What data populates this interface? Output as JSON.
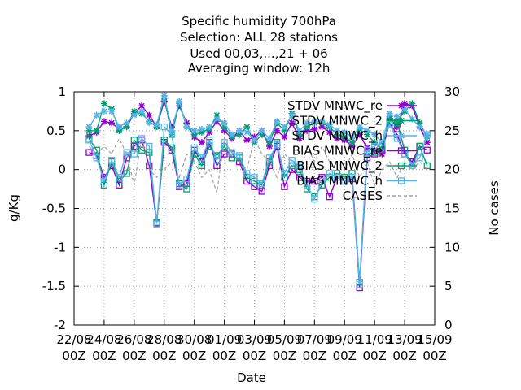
{
  "chart_data": {
    "type": "line",
    "title_lines": [
      "Specific humidity 700hPa",
      "Selection: ALL      28 stations",
      "Used  00,03,...,21  + 06",
      "Averaging window: 12h"
    ],
    "xlabel": "Date",
    "ylabel": "g/Kg",
    "y2label": "No cases",
    "ylim": [
      -2,
      1
    ],
    "y2lim": [
      0,
      30
    ],
    "yticks": [
      "1",
      "0.5",
      "0",
      "-0.5",
      "-1",
      "-1.5",
      "-2"
    ],
    "y2ticks": [
      "30",
      "25",
      "20",
      "15",
      "10",
      "5",
      "0"
    ],
    "xticks": [
      {
        "date": "22/08",
        "time": "00Z"
      },
      {
        "date": "24/08",
        "time": "00Z"
      },
      {
        "date": "26/08",
        "time": "00Z"
      },
      {
        "date": "28/08",
        "time": "00Z"
      },
      {
        "date": "30/08",
        "time": "00Z"
      },
      {
        "date": "01/09",
        "time": "00Z"
      },
      {
        "date": "03/09",
        "time": "00Z"
      },
      {
        "date": "05/09",
        "time": "00Z"
      },
      {
        "date": "07/09",
        "time": "00Z"
      },
      {
        "date": "09/09",
        "time": "00Z"
      },
      {
        "date": "11/09",
        "time": "00Z"
      },
      {
        "date": "13/09",
        "time": "00Z"
      },
      {
        "date": "15/09",
        "time": "00Z"
      }
    ],
    "x_day_offsets": [
      1,
      1.5,
      2,
      2.5,
      3,
      3.5,
      4,
      4.5,
      5,
      5.5,
      6,
      6.5,
      7,
      7.5,
      8,
      8.5,
      9,
      9.5,
      10,
      10.5,
      11,
      11.5,
      12,
      12.5,
      13,
      13.5,
      14,
      14.5,
      15,
      15.5,
      16,
      16.5,
      17,
      17.5,
      18,
      18.5,
      19,
      19.5,
      20,
      20.5,
      21,
      21.5,
      22,
      22.5,
      23,
      23.5
    ],
    "legend_position": "top-right",
    "colors": {
      "purple": "#9400d3",
      "green": "#009e73",
      "cyan": "#56b4e9",
      "cases": "#a0a0a0"
    },
    "series": [
      {
        "name": "STDV MNWC_re",
        "color": "#9400d3",
        "marker": "star",
        "values": [
          0.43,
          0.48,
          0.62,
          0.6,
          0.52,
          0.55,
          0.72,
          0.82,
          0.7,
          0.55,
          0.88,
          0.55,
          0.82,
          0.6,
          0.42,
          0.35,
          0.48,
          0.62,
          0.5,
          0.4,
          0.5,
          0.38,
          0.42,
          0.5,
          0.3,
          0.5,
          0.42,
          0.6,
          0.4,
          0.5,
          0.52,
          0.55,
          0.48,
          0.4,
          0.38,
          0.3,
          0.45,
          0.28,
          0.25,
          0.2,
          0.65,
          0.55,
          0.85,
          0.82,
          0.55,
          0.35
        ]
      },
      {
        "name": "STDV MNWC_2",
        "color": "#009e73",
        "marker": "star",
        "values": [
          0.5,
          0.5,
          0.85,
          0.78,
          0.5,
          0.55,
          0.75,
          0.72,
          0.62,
          0.55,
          0.92,
          0.45,
          0.85,
          0.55,
          0.45,
          0.48,
          0.52,
          0.7,
          0.55,
          0.42,
          0.45,
          0.55,
          0.35,
          0.45,
          0.35,
          0.6,
          0.5,
          0.72,
          0.45,
          0.55,
          0.6,
          0.6,
          0.55,
          0.45,
          0.42,
          0.35,
          0.52,
          0.45,
          0.35,
          0.25,
          0.68,
          0.62,
          0.75,
          0.85,
          0.6,
          0.42
        ]
      },
      {
        "name": "STDV MNWC_h",
        "color": "#56b4e9",
        "marker": "star",
        "values": [
          0.55,
          0.7,
          0.75,
          0.75,
          0.55,
          0.6,
          0.7,
          0.75,
          0.6,
          0.58,
          0.95,
          0.5,
          0.88,
          0.55,
          0.5,
          0.52,
          0.55,
          0.65,
          0.6,
          0.45,
          0.5,
          0.48,
          0.38,
          0.5,
          0.4,
          0.62,
          0.55,
          0.7,
          0.5,
          0.6,
          0.62,
          0.62,
          0.58,
          0.5,
          0.48,
          0.42,
          0.55,
          0.5,
          0.45,
          0.35,
          0.72,
          0.68,
          0.78,
          0.65,
          0.55,
          0.45
        ]
      },
      {
        "name": "BIAS MNWC_re",
        "color": "#9400d3",
        "marker": "square",
        "values": [
          0.22,
          0.18,
          -0.1,
          0.05,
          -0.2,
          0.15,
          0.3,
          0.38,
          0.05,
          -0.69,
          0.35,
          0.25,
          -0.22,
          -0.18,
          0.25,
          0.1,
          0.35,
          0.05,
          0.2,
          0.2,
          0.1,
          -0.15,
          -0.22,
          -0.28,
          0.05,
          0.3,
          -0.22,
          0.0,
          -0.1,
          -0.15,
          -0.15,
          -0.1,
          -0.35,
          -0.1,
          -0.15,
          -0.12,
          -1.52,
          0.15,
          0.2,
          0.25,
          0.6,
          0.45,
          0.2,
          0.1,
          0.3,
          0.25
        ]
      },
      {
        "name": "BIAS MNWC_2",
        "color": "#009e73",
        "marker": "square",
        "values": [
          0.4,
          0.25,
          -0.2,
          0.1,
          -0.15,
          -0.05,
          0.38,
          0.25,
          0.22,
          -0.68,
          0.38,
          0.28,
          -0.18,
          -0.25,
          0.2,
          0.05,
          0.3,
          0.18,
          0.3,
          0.15,
          0.15,
          -0.1,
          -0.15,
          -0.2,
          0.1,
          0.35,
          -0.1,
          0.05,
          0.0,
          -0.25,
          -0.35,
          -0.2,
          -0.1,
          -0.05,
          -0.1,
          -0.05,
          -1.45,
          0.2,
          0.22,
          0.3,
          0.62,
          0.6,
          0.25,
          0.05,
          0.3,
          0.05
        ]
      },
      {
        "name": "BIAS MNWC_h",
        "color": "#56b4e9",
        "marker": "square",
        "values": [
          0.38,
          0.15,
          -0.15,
          0.12,
          -0.1,
          0.22,
          0.2,
          0.4,
          0.3,
          -0.7,
          0.55,
          0.45,
          -0.2,
          -0.12,
          0.28,
          0.15,
          0.38,
          0.12,
          0.35,
          0.22,
          0.18,
          -0.05,
          -0.1,
          -0.18,
          0.15,
          0.32,
          -0.05,
          0.12,
          0.05,
          -0.2,
          -0.38,
          -0.15,
          -0.05,
          -0.1,
          -0.15,
          -0.1,
          -1.48,
          0.25,
          0.3,
          0.35,
          0.58,
          0.4,
          0.2,
          0.05,
          0.15,
          0.45
        ]
      },
      {
        "name": "CASES",
        "color": "#a0a0a0",
        "axis": "right",
        "dashed": true,
        "values": [
          23,
          22,
          23,
          22,
          24,
          22,
          18,
          24,
          20,
          19,
          20,
          21,
          19,
          22,
          21,
          19,
          20,
          17,
          24,
          22,
          21,
          20,
          24,
          22,
          21,
          19,
          22,
          21,
          19,
          23,
          21,
          23,
          21,
          19,
          20,
          22,
          19,
          21,
          18,
          20,
          21,
          19,
          21,
          20,
          21,
          20
        ]
      }
    ]
  }
}
